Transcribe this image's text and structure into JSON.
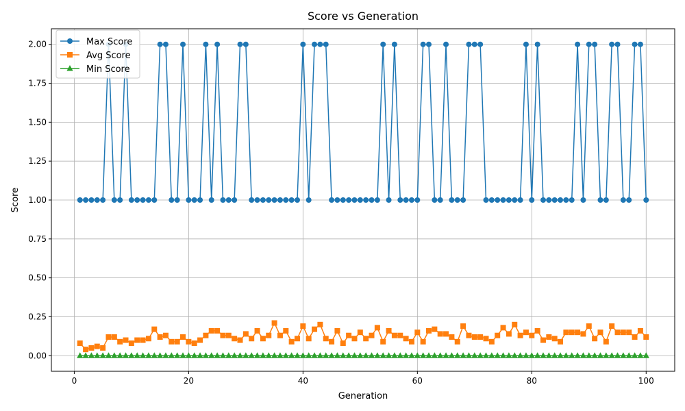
{
  "chart_data": {
    "type": "line",
    "title": "Score vs Generation",
    "xlabel": "Generation",
    "ylabel": "Score",
    "xlim": [
      -4,
      105
    ],
    "ylim": [
      -0.1,
      2.1
    ],
    "xticks": [
      0,
      20,
      40,
      60,
      80,
      100
    ],
    "yticks": [
      0.0,
      0.25,
      0.5,
      0.75,
      1.0,
      1.25,
      1.5,
      1.75,
      2.0
    ],
    "ytick_labels": [
      "0.00",
      "0.25",
      "0.50",
      "0.75",
      "1.00",
      "1.25",
      "1.50",
      "1.75",
      "2.00"
    ],
    "xtick_labels": [
      "0",
      "20",
      "40",
      "60",
      "80",
      "100"
    ],
    "grid": true,
    "legend_position": "top-left",
    "x": [
      1,
      2,
      3,
      4,
      5,
      6,
      7,
      8,
      9,
      10,
      11,
      12,
      13,
      14,
      15,
      16,
      17,
      18,
      19,
      20,
      21,
      22,
      23,
      24,
      25,
      26,
      27,
      28,
      29,
      30,
      31,
      32,
      33,
      34,
      35,
      36,
      37,
      38,
      39,
      40,
      41,
      42,
      43,
      44,
      45,
      46,
      47,
      48,
      49,
      50,
      51,
      52,
      53,
      54,
      55,
      56,
      57,
      58,
      59,
      60,
      61,
      62,
      63,
      64,
      65,
      66,
      67,
      68,
      69,
      70,
      71,
      72,
      73,
      74,
      75,
      76,
      77,
      78,
      79,
      80,
      81,
      82,
      83,
      84,
      85,
      86,
      87,
      88,
      89,
      90,
      91,
      92,
      93,
      94,
      95,
      96,
      97,
      98,
      99,
      100
    ],
    "series": [
      {
        "name": "Max Score",
        "color": "#1f77b4",
        "marker": "circle",
        "values": [
          1,
          1,
          1,
          1,
          1,
          2,
          1,
          1,
          2,
          1,
          1,
          1,
          1,
          1,
          2,
          2,
          1,
          1,
          2,
          1,
          1,
          1,
          2,
          1,
          2,
          1,
          1,
          1,
          2,
          2,
          1,
          1,
          1,
          1,
          1,
          1,
          1,
          1,
          1,
          2,
          1,
          2,
          2,
          2,
          1,
          1,
          1,
          1,
          1,
          1,
          1,
          1,
          1,
          2,
          1,
          2,
          1,
          1,
          1,
          1,
          2,
          2,
          1,
          1,
          2,
          1,
          1,
          1,
          2,
          2,
          2,
          1,
          1,
          1,
          1,
          1,
          1,
          1,
          2,
          1,
          2,
          1,
          1,
          1,
          1,
          1,
          1,
          2,
          1,
          2,
          2,
          1,
          1,
          2,
          2,
          1,
          1,
          2,
          2,
          1
        ]
      },
      {
        "name": "Avg Score",
        "color": "#ff7f0e",
        "marker": "square",
        "values": [
          0.08,
          0.04,
          0.05,
          0.06,
          0.05,
          0.12,
          0.12,
          0.09,
          0.1,
          0.08,
          0.1,
          0.1,
          0.11,
          0.17,
          0.12,
          0.13,
          0.09,
          0.09,
          0.12,
          0.09,
          0.08,
          0.1,
          0.13,
          0.16,
          0.16,
          0.13,
          0.13,
          0.11,
          0.1,
          0.14,
          0.11,
          0.16,
          0.11,
          0.13,
          0.21,
          0.13,
          0.16,
          0.09,
          0.11,
          0.19,
          0.11,
          0.17,
          0.2,
          0.11,
          0.09,
          0.16,
          0.08,
          0.13,
          0.11,
          0.15,
          0.11,
          0.13,
          0.18,
          0.09,
          0.16,
          0.13,
          0.13,
          0.11,
          0.09,
          0.15,
          0.09,
          0.16,
          0.17,
          0.14,
          0.14,
          0.12,
          0.09,
          0.19,
          0.13,
          0.12,
          0.12,
          0.11,
          0.09,
          0.13,
          0.18,
          0.14,
          0.2,
          0.13,
          0.15,
          0.13,
          0.16,
          0.1,
          0.12,
          0.11,
          0.09,
          0.15,
          0.15,
          0.15,
          0.14,
          0.19,
          0.11,
          0.15,
          0.09,
          0.19,
          0.15,
          0.15,
          0.15,
          0.12,
          0.16,
          0.12
        ]
      },
      {
        "name": "Min Score",
        "color": "#2ca02c",
        "marker": "triangle",
        "values": [
          0,
          0,
          0,
          0,
          0,
          0,
          0,
          0,
          0,
          0,
          0,
          0,
          0,
          0,
          0,
          0,
          0,
          0,
          0,
          0,
          0,
          0,
          0,
          0,
          0,
          0,
          0,
          0,
          0,
          0,
          0,
          0,
          0,
          0,
          0,
          0,
          0,
          0,
          0,
          0,
          0,
          0,
          0,
          0,
          0,
          0,
          0,
          0,
          0,
          0,
          0,
          0,
          0,
          0,
          0,
          0,
          0,
          0,
          0,
          0,
          0,
          0,
          0,
          0,
          0,
          0,
          0,
          0,
          0,
          0,
          0,
          0,
          0,
          0,
          0,
          0,
          0,
          0,
          0,
          0,
          0,
          0,
          0,
          0,
          0,
          0,
          0,
          0,
          0,
          0,
          0,
          0,
          0,
          0,
          0,
          0,
          0,
          0,
          0,
          0
        ]
      }
    ]
  }
}
